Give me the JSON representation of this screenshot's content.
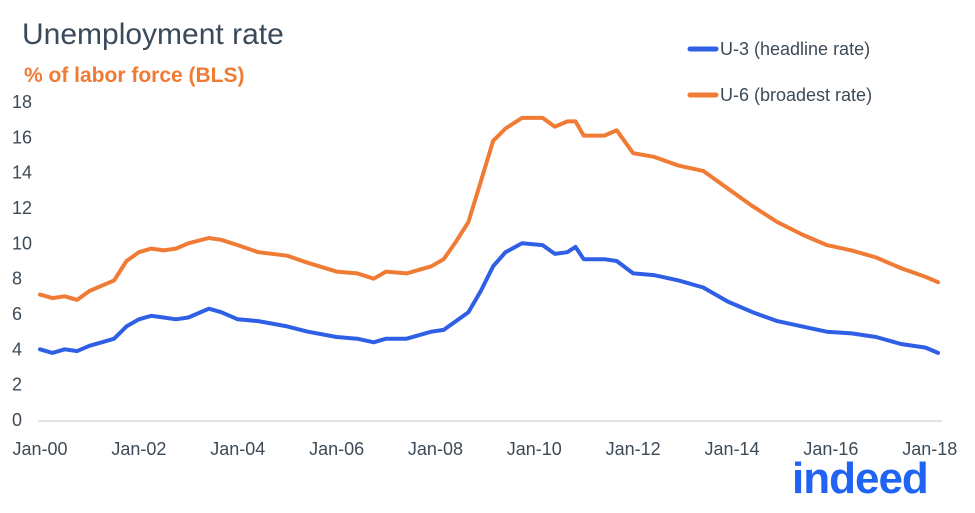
{
  "title": "Unemployment rate",
  "subtitle": "% of labor force (BLS)",
  "logo_text": "indeed",
  "colors": {
    "u3": "#2f5fe5",
    "u6": "#f07b35",
    "title": "#3b4a5a",
    "subtitle": "#f07b35",
    "logo": "#2164f3"
  },
  "chart_data": {
    "type": "line",
    "title": "Unemployment rate",
    "subtitle": "% of labor force (BLS)",
    "xlabel": "",
    "ylabel": "",
    "ylim": [
      0,
      18
    ],
    "xlim": [
      "2000-01",
      "2018-03"
    ],
    "yticks": [
      0,
      2,
      4,
      6,
      8,
      10,
      12,
      14,
      16,
      18
    ],
    "xticks": [
      "Jan-00",
      "Jan-02",
      "Jan-04",
      "Jan-06",
      "Jan-08",
      "Jan-10",
      "Jan-12",
      "Jan-14",
      "Jan-16",
      "Jan-18"
    ],
    "grid": false,
    "legend_position": "top-right",
    "series": [
      {
        "name": "U-3 (headline rate)",
        "color": "#2f5fe5",
        "points": [
          [
            "2000-01",
            4.0
          ],
          [
            "2000-04",
            3.8
          ],
          [
            "2000-07",
            4.0
          ],
          [
            "2000-10",
            3.9
          ],
          [
            "2001-01",
            4.2
          ],
          [
            "2001-04",
            4.4
          ],
          [
            "2001-07",
            4.6
          ],
          [
            "2001-10",
            5.3
          ],
          [
            "2002-01",
            5.7
          ],
          [
            "2002-04",
            5.9
          ],
          [
            "2002-07",
            5.8
          ],
          [
            "2002-10",
            5.7
          ],
          [
            "2003-01",
            5.8
          ],
          [
            "2003-06",
            6.3
          ],
          [
            "2003-09",
            6.1
          ],
          [
            "2004-01",
            5.7
          ],
          [
            "2004-06",
            5.6
          ],
          [
            "2005-01",
            5.3
          ],
          [
            "2005-06",
            5.0
          ],
          [
            "2006-01",
            4.7
          ],
          [
            "2006-06",
            4.6
          ],
          [
            "2006-10",
            4.4
          ],
          [
            "2007-01",
            4.6
          ],
          [
            "2007-06",
            4.6
          ],
          [
            "2007-12",
            5.0
          ],
          [
            "2008-03",
            5.1
          ],
          [
            "2008-06",
            5.6
          ],
          [
            "2008-09",
            6.1
          ],
          [
            "2008-12",
            7.3
          ],
          [
            "2009-03",
            8.7
          ],
          [
            "2009-06",
            9.5
          ],
          [
            "2009-10",
            10.0
          ],
          [
            "2010-03",
            9.9
          ],
          [
            "2010-06",
            9.4
          ],
          [
            "2010-09",
            9.5
          ],
          [
            "2010-11",
            9.8
          ],
          [
            "2011-01",
            9.1
          ],
          [
            "2011-06",
            9.1
          ],
          [
            "2011-09",
            9.0
          ],
          [
            "2012-01",
            8.3
          ],
          [
            "2012-06",
            8.2
          ],
          [
            "2012-12",
            7.9
          ],
          [
            "2013-06",
            7.5
          ],
          [
            "2013-12",
            6.7
          ],
          [
            "2014-06",
            6.1
          ],
          [
            "2014-12",
            5.6
          ],
          [
            "2015-06",
            5.3
          ],
          [
            "2015-12",
            5.0
          ],
          [
            "2016-06",
            4.9
          ],
          [
            "2016-12",
            4.7
          ],
          [
            "2017-06",
            4.3
          ],
          [
            "2017-12",
            4.1
          ],
          [
            "2018-03",
            3.8
          ]
        ]
      },
      {
        "name": "U-6 (broadest rate)",
        "color": "#f07b35",
        "points": [
          [
            "2000-01",
            7.1
          ],
          [
            "2000-04",
            6.9
          ],
          [
            "2000-07",
            7.0
          ],
          [
            "2000-10",
            6.8
          ],
          [
            "2001-01",
            7.3
          ],
          [
            "2001-04",
            7.6
          ],
          [
            "2001-07",
            7.9
          ],
          [
            "2001-10",
            9.0
          ],
          [
            "2002-01",
            9.5
          ],
          [
            "2002-04",
            9.7
          ],
          [
            "2002-07",
            9.6
          ],
          [
            "2002-10",
            9.7
          ],
          [
            "2003-01",
            10.0
          ],
          [
            "2003-06",
            10.3
          ],
          [
            "2003-09",
            10.2
          ],
          [
            "2004-01",
            9.9
          ],
          [
            "2004-06",
            9.5
          ],
          [
            "2005-01",
            9.3
          ],
          [
            "2005-06",
            8.9
          ],
          [
            "2006-01",
            8.4
          ],
          [
            "2006-06",
            8.3
          ],
          [
            "2006-10",
            8.0
          ],
          [
            "2007-01",
            8.4
          ],
          [
            "2007-06",
            8.3
          ],
          [
            "2007-12",
            8.7
          ],
          [
            "2008-03",
            9.1
          ],
          [
            "2008-06",
            10.1
          ],
          [
            "2008-09",
            11.2
          ],
          [
            "2008-12",
            13.5
          ],
          [
            "2009-03",
            15.8
          ],
          [
            "2009-06",
            16.5
          ],
          [
            "2009-10",
            17.1
          ],
          [
            "2010-03",
            17.1
          ],
          [
            "2010-06",
            16.6
          ],
          [
            "2010-09",
            16.9
          ],
          [
            "2010-11",
            16.9
          ],
          [
            "2011-01",
            16.1
          ],
          [
            "2011-06",
            16.1
          ],
          [
            "2011-09",
            16.4
          ],
          [
            "2012-01",
            15.1
          ],
          [
            "2012-06",
            14.9
          ],
          [
            "2012-12",
            14.4
          ],
          [
            "2013-06",
            14.1
          ],
          [
            "2013-12",
            13.1
          ],
          [
            "2014-06",
            12.1
          ],
          [
            "2014-12",
            11.2
          ],
          [
            "2015-06",
            10.5
          ],
          [
            "2015-12",
            9.9
          ],
          [
            "2016-06",
            9.6
          ],
          [
            "2016-12",
            9.2
          ],
          [
            "2017-06",
            8.6
          ],
          [
            "2017-12",
            8.1
          ],
          [
            "2018-03",
            7.8
          ]
        ]
      }
    ]
  }
}
